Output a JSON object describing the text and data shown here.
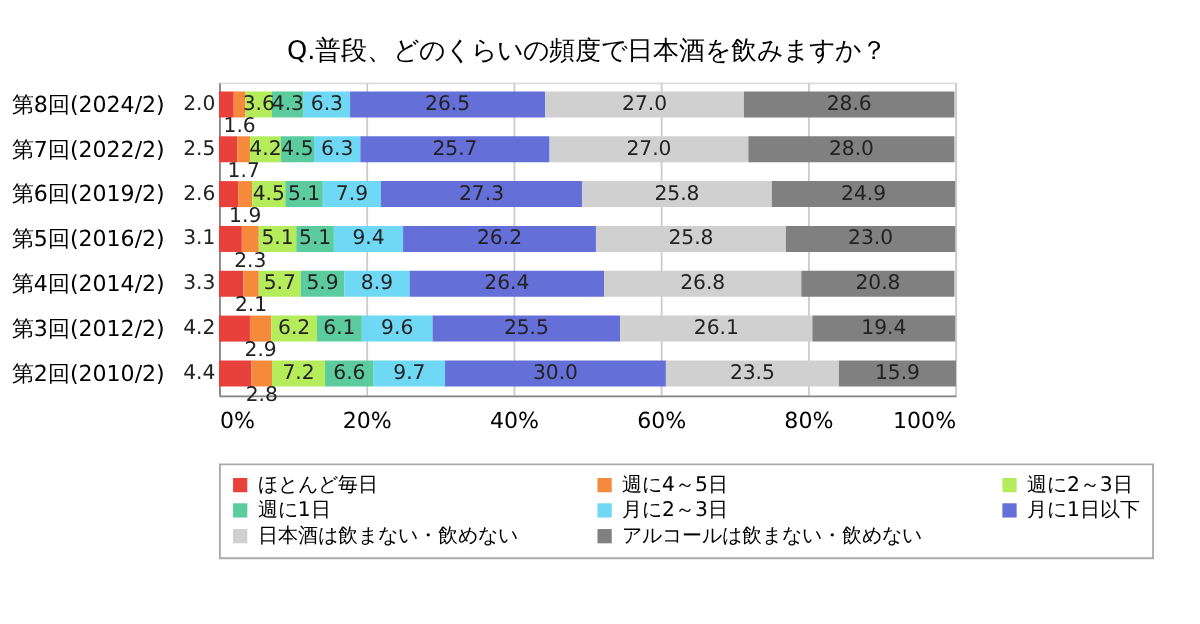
{
  "chart_data": {
    "type": "bar",
    "orientation": "horizontal",
    "stacked": true,
    "title": "Q.普段、どのくらいの頻度で日本酒を飲みますか？",
    "categories": [
      "第8回(2024/2)",
      "第7回(2022/2)",
      "第6回(2019/2)",
      "第5回(2016/2)",
      "第4回(2014/2)",
      "第3回(2012/2)",
      "第2回(2010/2)"
    ],
    "series": [
      {
        "name": "ほとんど毎日",
        "color": "#e8413c",
        "values": [
          2.0,
          2.5,
          2.6,
          3.1,
          3.3,
          4.2,
          4.4
        ],
        "value_labels": [
          "2.0",
          "2.5",
          "2.6",
          "3.1",
          "3.3",
          "4.2",
          "4.4"
        ]
      },
      {
        "name": "週に4～5日",
        "color": "#f58a3c",
        "values": [
          1.6,
          1.7,
          1.9,
          2.3,
          2.1,
          2.9,
          2.8
        ],
        "value_labels": [
          "1.6",
          "1.7",
          "1.9",
          "2.3",
          "2.1",
          "2.9",
          "2.8"
        ]
      },
      {
        "name": "週に2～3日",
        "color": "#b5ec5c",
        "values": [
          3.6,
          4.2,
          4.5,
          5.1,
          5.7,
          6.2,
          7.2
        ],
        "value_labels": [
          "3.6",
          "4.2",
          "4.5",
          "5.1",
          "5.7",
          "6.2",
          "7.2"
        ]
      },
      {
        "name": "週に1日",
        "color": "#5ccc9e",
        "values": [
          4.3,
          4.5,
          5.1,
          5.1,
          5.9,
          6.1,
          6.6
        ],
        "value_labels": [
          "4.3",
          "4.5",
          "5.1",
          "5.1",
          "5.9",
          "6.1",
          "6.6"
        ]
      },
      {
        "name": "月に2～3日",
        "color": "#6fd8f5",
        "values": [
          6.3,
          6.3,
          7.9,
          9.4,
          8.9,
          9.6,
          9.7
        ],
        "value_labels": [
          "6.3",
          "6.3",
          "7.9",
          "9.4",
          "8.9",
          "9.6",
          "9.7"
        ]
      },
      {
        "name": "月に1日以下",
        "color": "#6470d8",
        "values": [
          26.5,
          25.7,
          27.3,
          26.2,
          26.4,
          25.5,
          30.0
        ],
        "value_labels": [
          "26.5",
          "25.7",
          "27.3",
          "26.2",
          "26.4",
          "25.5",
          "30.0"
        ]
      },
      {
        "name": "日本酒は飲まない・飲めない",
        "color": "#d0d0d0",
        "values": [
          27.0,
          27.0,
          25.8,
          25.8,
          26.8,
          26.1,
          23.5
        ],
        "value_labels": [
          "27.0",
          "27.0",
          "25.8",
          "25.8",
          "26.8",
          "26.1",
          "23.5"
        ]
      },
      {
        "name": "アルコールは飲まない・飲めない",
        "color": "#808080",
        "values": [
          28.6,
          28.0,
          24.9,
          23.0,
          20.8,
          19.4,
          15.9
        ],
        "value_labels": [
          "28.6",
          "28.0",
          "24.9",
          "23.0",
          "20.8",
          "19.4",
          "15.9"
        ]
      }
    ],
    "xlim": [
      0,
      100
    ],
    "xticks": [
      {
        "value": 0,
        "label": "0%"
      },
      {
        "value": 20,
        "label": "20%"
      },
      {
        "value": 40,
        "label": "40%"
      },
      {
        "value": 60,
        "label": "60%"
      },
      {
        "value": 80,
        "label": "80%"
      },
      {
        "value": 100,
        "label": "100%"
      }
    ],
    "grid": "x",
    "legend": "bottom"
  }
}
